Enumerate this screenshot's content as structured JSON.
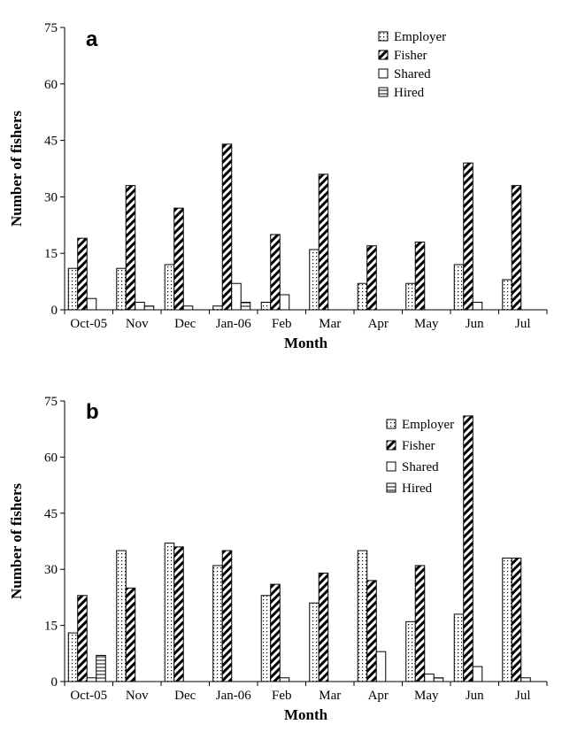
{
  "chart_data": [
    {
      "type": "bar",
      "panel_label": "a",
      "categories": [
        "Oct-05",
        "Nov",
        "Dec",
        "Jan-06",
        "Feb",
        "Mar",
        "Apr",
        "May",
        "Jun",
        "Jul"
      ],
      "series": [
        {
          "name": "Employer",
          "values": [
            11,
            11,
            12,
            1,
            2,
            16,
            7,
            7,
            12,
            8
          ]
        },
        {
          "name": "Fisher",
          "values": [
            19,
            33,
            27,
            44,
            20,
            36,
            17,
            18,
            39,
            33
          ]
        },
        {
          "name": "Shared",
          "values": [
            3,
            2,
            1,
            7,
            4,
            0,
            0,
            0,
            2,
            0
          ]
        },
        {
          "name": "Hired",
          "values": [
            0,
            1,
            0,
            2,
            0,
            0,
            0,
            0,
            0,
            0
          ]
        }
      ],
      "xlabel": "Month",
      "ylabel": "Number of fishers",
      "ylim": [
        0,
        75
      ],
      "yticks": [
        0,
        15,
        30,
        45,
        60,
        75
      ],
      "grid": false,
      "legend_position": "top-right"
    },
    {
      "type": "bar",
      "panel_label": "b",
      "categories": [
        "Oct-05",
        "Nov",
        "Dec",
        "Jan-06",
        "Feb",
        "Mar",
        "Apr",
        "May",
        "Jun",
        "Jul"
      ],
      "series": [
        {
          "name": "Employer",
          "values": [
            13,
            35,
            37,
            31,
            23,
            21,
            35,
            16,
            18,
            33
          ]
        },
        {
          "name": "Fisher",
          "values": [
            23,
            25,
            36,
            35,
            26,
            29,
            27,
            31,
            71,
            33
          ]
        },
        {
          "name": "Shared",
          "values": [
            1,
            0,
            0,
            0,
            1,
            0,
            8,
            2,
            4,
            1
          ]
        },
        {
          "name": "Hired",
          "values": [
            7,
            0,
            0,
            0,
            0,
            0,
            0,
            1,
            0,
            0
          ]
        }
      ],
      "xlabel": "Month",
      "ylabel": "Number of fishers",
      "ylim": [
        0,
        75
      ],
      "yticks": [
        0,
        15,
        30,
        45,
        60,
        75
      ],
      "grid": false,
      "legend_position": "top-right"
    }
  ]
}
